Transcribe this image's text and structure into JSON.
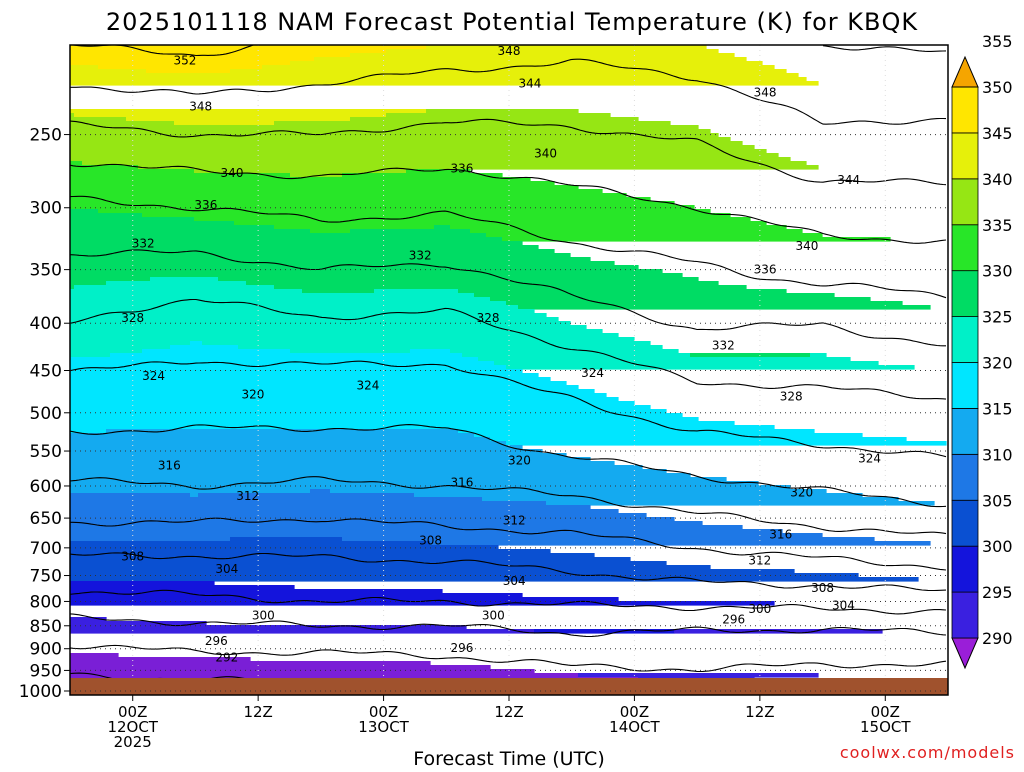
{
  "chart_data": {
    "type": "heatmap",
    "title": "2025101118 NAM Forecast Potential Temperature (K) for KBQK",
    "xlabel": "Forecast Time (UTC)",
    "ylabel": "",
    "watermark": "coolwx.com/models",
    "x_ticks": [
      {
        "hours": 6,
        "lines": [
          "00Z",
          "12OCT",
          "2025"
        ]
      },
      {
        "hours": 18,
        "lines": [
          "12Z"
        ]
      },
      {
        "hours": 30,
        "lines": [
          "00Z",
          "13OCT"
        ]
      },
      {
        "hours": 42,
        "lines": [
          "12Z"
        ]
      },
      {
        "hours": 54,
        "lines": [
          "00Z",
          "14OCT"
        ]
      },
      {
        "hours": 66,
        "lines": [
          "12Z"
        ]
      },
      {
        "hours": 78,
        "lines": [
          "00Z",
          "15OCT"
        ]
      }
    ],
    "x_range_hours": [
      0,
      84
    ],
    "y_ticks_hpa": [
      250,
      300,
      350,
      400,
      450,
      500,
      550,
      600,
      650,
      700,
      750,
      800,
      850,
      900,
      950,
      1000
    ],
    "y_range_hpa": [
      200,
      1010
    ],
    "colorbar": {
      "levels": [
        290,
        295,
        300,
        305,
        310,
        315,
        320,
        325,
        330,
        335,
        340,
        345,
        350,
        355
      ],
      "colors": [
        "#7a1fd6",
        "#3a20e0",
        "#1414dc",
        "#0a50d2",
        "#1e78e6",
        "#14aaf0",
        "#00e6ff",
        "#00f0c8",
        "#00dc64",
        "#28e628",
        "#96e614",
        "#e6f00a",
        "#ffe600",
        "#f5b400"
      ],
      "under_color": "#9a1ed8",
      "over_color": "#f5a500"
    },
    "contour_interval_K": 4,
    "profile": [
      {
        "t": 0,
        "p": [
          1000,
          960,
          900,
          850,
          800,
          750,
          700,
          650,
          600,
          550,
          500,
          450,
          400,
          350,
          300,
          250,
          200
        ],
        "theta": [
          291.0,
          292.0,
          295.5,
          298.5,
          303.0,
          305.5,
          309.0,
          312.5,
          315.5,
          318.5,
          321.5,
          324.0,
          328.0,
          331.0,
          335.0,
          343.0,
          352.0
        ]
      },
      {
        "t": 12,
        "p": [
          1000,
          960,
          900,
          850,
          800,
          750,
          700,
          650,
          600,
          550,
          500,
          450,
          400,
          350,
          300,
          250,
          200
        ],
        "theta": [
          290.5,
          292.5,
          296.5,
          299.5,
          303.5,
          305.5,
          309.0,
          312.5,
          316.0,
          318.5,
          321.0,
          323.5,
          326.0,
          330.5,
          336.0,
          344.0,
          353.0
        ]
      },
      {
        "t": 24,
        "p": [
          1000,
          960,
          900,
          850,
          800,
          750,
          700,
          650,
          600,
          550,
          500,
          450,
          400,
          350,
          300,
          250,
          200
        ],
        "theta": [
          291.5,
          293.0,
          296.5,
          300.0,
          304.0,
          306.0,
          309.0,
          312.0,
          315.5,
          318.5,
          321.0,
          323.5,
          327.5,
          332.0,
          337.0,
          344.0,
          351.0
        ]
      },
      {
        "t": 36,
        "p": [
          1000,
          960,
          900,
          850,
          800,
          750,
          700,
          650,
          600,
          550,
          500,
          450,
          400,
          350,
          300,
          250,
          200
        ],
        "theta": [
          292.0,
          293.5,
          297.0,
          300.0,
          304.0,
          306.5,
          309.5,
          313.0,
          316.0,
          318.5,
          321.0,
          323.5,
          327.0,
          331.5,
          336.5,
          343.0,
          350.0
        ]
      },
      {
        "t": 48,
        "p": [
          1000,
          960,
          900,
          850,
          800,
          750,
          700,
          650,
          600,
          550,
          500,
          450,
          400,
          350,
          300,
          250,
          200
        ],
        "theta": [
          294.0,
          295.0,
          298.0,
          301.0,
          304.5,
          307.5,
          310.5,
          313.5,
          317.0,
          320.5,
          323.0,
          326.0,
          330.0,
          334.0,
          338.5,
          343.5,
          349.0
        ]
      },
      {
        "t": 60,
        "p": [
          1000,
          960,
          900,
          850,
          800,
          750,
          700,
          650,
          600,
          550,
          500,
          450,
          400,
          350,
          300,
          250,
          200
        ],
        "theta": [
          294.5,
          295.5,
          298.0,
          300.5,
          305.0,
          309.0,
          312.0,
          315.5,
          319.0,
          322.5,
          325.5,
          329.0,
          332.5,
          335.5,
          340.0,
          344.5,
          350.0
        ]
      },
      {
        "t": 72,
        "p": [
          1000,
          960,
          900,
          850,
          800,
          750,
          700,
          650,
          600,
          550,
          500,
          450,
          400,
          350,
          300,
          250,
          200
        ],
        "theta": [
          294.0,
          295.0,
          297.5,
          300.5,
          305.5,
          309.5,
          313.5,
          317.0,
          320.5,
          323.5,
          326.5,
          329.0,
          332.0,
          337.5,
          342.0,
          347.5,
          352.0
        ]
      },
      {
        "t": 84,
        "p": [
          1000,
          960,
          900,
          850,
          800,
          750,
          700,
          650,
          600,
          550,
          500,
          450,
          400,
          350,
          300,
          250,
          200
        ],
        "theta": [
          294.0,
          295.0,
          297.5,
          301.0,
          306.0,
          311.0,
          314.5,
          318.5,
          322.0,
          324.5,
          327.0,
          330.0,
          334.0,
          338.0,
          342.5,
          347.0,
          352.5
        ]
      }
    ],
    "contour_labels": [
      {
        "value": "352",
        "t": 11,
        "p": 208
      },
      {
        "value": "348",
        "t": 12.5,
        "p": 233
      },
      {
        "value": "348",
        "t": 42,
        "p": 203
      },
      {
        "value": "344",
        "t": 44,
        "p": 220
      },
      {
        "value": "348",
        "t": 66.5,
        "p": 225
      },
      {
        "value": "340",
        "t": 15.5,
        "p": 275
      },
      {
        "value": "340",
        "t": 45.5,
        "p": 262
      },
      {
        "value": "344",
        "t": 74.5,
        "p": 280
      },
      {
        "value": "336",
        "t": 13,
        "p": 298
      },
      {
        "value": "336",
        "t": 37.5,
        "p": 272
      },
      {
        "value": "340",
        "t": 70.5,
        "p": 330
      },
      {
        "value": "332",
        "t": 7,
        "p": 328
      },
      {
        "value": "332",
        "t": 33.5,
        "p": 338
      },
      {
        "value": "336",
        "t": 66.5,
        "p": 350
      },
      {
        "value": "328",
        "t": 6,
        "p": 395
      },
      {
        "value": "328",
        "t": 40,
        "p": 395
      },
      {
        "value": "332",
        "t": 62.5,
        "p": 423
      },
      {
        "value": "324",
        "t": 8,
        "p": 456
      },
      {
        "value": "324",
        "t": 28.5,
        "p": 467
      },
      {
        "value": "324",
        "t": 50,
        "p": 453
      },
      {
        "value": "328",
        "t": 69,
        "p": 480
      },
      {
        "value": "320",
        "t": 17.5,
        "p": 478
      },
      {
        "value": "320",
        "t": 43,
        "p": 563
      },
      {
        "value": "324",
        "t": 76.5,
        "p": 560
      },
      {
        "value": "316",
        "t": 9.5,
        "p": 570
      },
      {
        "value": "316",
        "t": 37.5,
        "p": 595
      },
      {
        "value": "320",
        "t": 70,
        "p": 610
      },
      {
        "value": "312",
        "t": 17,
        "p": 615
      },
      {
        "value": "312",
        "t": 42.5,
        "p": 654
      },
      {
        "value": "316",
        "t": 68,
        "p": 677
      },
      {
        "value": "308",
        "t": 6,
        "p": 715
      },
      {
        "value": "308",
        "t": 34.5,
        "p": 687
      },
      {
        "value": "312",
        "t": 66,
        "p": 722
      },
      {
        "value": "304",
        "t": 15,
        "p": 738
      },
      {
        "value": "304",
        "t": 42.5,
        "p": 760
      },
      {
        "value": "308",
        "t": 72,
        "p": 774
      },
      {
        "value": "304",
        "t": 74,
        "p": 808
      },
      {
        "value": "300",
        "t": 18.5,
        "p": 829
      },
      {
        "value": "300",
        "t": 40.5,
        "p": 829
      },
      {
        "value": "300",
        "t": 66,
        "p": 815
      },
      {
        "value": "296",
        "t": 63.5,
        "p": 837
      },
      {
        "value": "296",
        "t": 14,
        "p": 883
      },
      {
        "value": "296",
        "t": 37.5,
        "p": 898
      },
      {
        "value": "292",
        "t": 15,
        "p": 920
      }
    ]
  }
}
